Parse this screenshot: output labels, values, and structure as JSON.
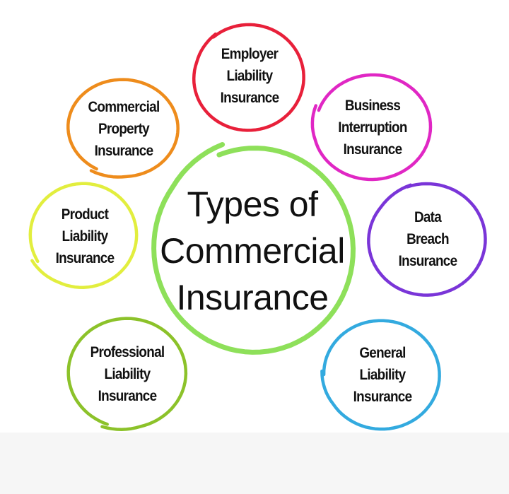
{
  "center": {
    "label": "Types of\nCommercial\nInsurance",
    "color": "#8ee05a"
  },
  "nodes": [
    {
      "id": "employer",
      "label": "Employer\nLiability\nInsurance",
      "color": "#e8203a"
    },
    {
      "id": "business",
      "label": "Business\nInterruption\nInsurance",
      "color": "#e027c4"
    },
    {
      "id": "data",
      "label": "Data\nBreach\nInsurance",
      "color": "#7a35d8"
    },
    {
      "id": "general",
      "label": "General\nLiability\nInsurance",
      "color": "#33aadf"
    },
    {
      "id": "professional",
      "label": "Professional\nLiability\nInsurance",
      "color": "#8cc22a"
    },
    {
      "id": "product",
      "label": "Product\nLiability\nInsurance",
      "color": "#e2ee3e"
    },
    {
      "id": "commercial",
      "label": "Commercial\nProperty\nInsurance",
      "color": "#ee8c1c"
    }
  ]
}
